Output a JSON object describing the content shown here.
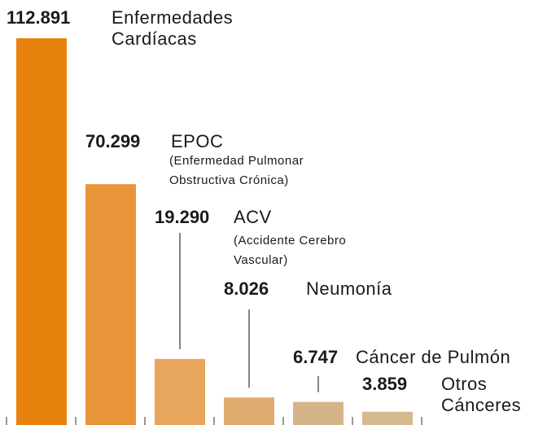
{
  "chart_data": {
    "type": "bar",
    "categories": [
      "Enfermedades Cardíacas",
      "EPOC",
      "ACV",
      "Neumonía",
      "Cáncer de Pulmón",
      "Otros Cánceres"
    ],
    "notes": [
      null,
      "(Enfermedad Pulmonar Obstructiva Crónica)",
      "(Accidente Cerebro Vascular)",
      null,
      null,
      null
    ],
    "values": [
      112891,
      70299,
      19290,
      8026,
      6747,
      3859
    ],
    "value_labels": [
      "112.891",
      "70.299",
      "19.290",
      "8.026",
      "6.747",
      "3.859"
    ],
    "colors": [
      "#e8820f",
      "#ea943a",
      "#e8a55c",
      "#dfaa6e",
      "#d6b48a",
      "#d4b98f"
    ]
  }
}
